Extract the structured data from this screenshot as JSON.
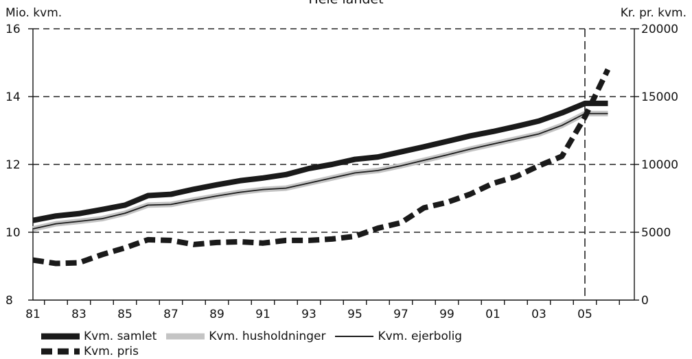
{
  "chart_data": {
    "type": "line",
    "title": "Hele landet",
    "left_axis_label": "Mio. kvm.",
    "right_axis_label": "Kr. pr. kvm.",
    "x": [
      "81",
      "82",
      "83",
      "84",
      "85",
      "86",
      "87",
      "88",
      "89",
      "90",
      "91",
      "92",
      "93",
      "94",
      "95",
      "96",
      "97",
      "98",
      "99",
      "00",
      "01",
      "02",
      "03",
      "04",
      "05",
      "06"
    ],
    "x_tick_labels": [
      "81",
      "83",
      "85",
      "87",
      "89",
      "91",
      "93",
      "95",
      "97",
      "99",
      "01",
      "03",
      "05"
    ],
    "y_left": {
      "range": [
        8,
        16
      ],
      "ticks": [
        "8",
        "10",
        "12",
        "14",
        "16"
      ]
    },
    "y_right": {
      "range": [
        0,
        20000
      ],
      "ticks": [
        "0",
        "5000",
        "10000",
        "15000",
        "20000"
      ]
    },
    "grid": "horizontal dashed at left ticks 10, 12, 14, 16",
    "marker_line_at": "05",
    "series": [
      {
        "name": "Kvm. samlet",
        "axis": "left",
        "style": "thick-black",
        "values": [
          10.35,
          10.48,
          10.55,
          10.67,
          10.8,
          11.08,
          11.12,
          11.27,
          11.4,
          11.52,
          11.6,
          11.7,
          11.88,
          12.0,
          12.15,
          12.22,
          12.37,
          12.52,
          12.68,
          12.84,
          12.97,
          13.12,
          13.28,
          13.52,
          13.8,
          13.8
        ]
      },
      {
        "name": "Kvm. husholdninger",
        "axis": "left",
        "style": "thick-gray",
        "values": [
          10.1,
          10.25,
          10.32,
          10.4,
          10.56,
          10.8,
          10.82,
          10.95,
          11.07,
          11.18,
          11.26,
          11.3,
          11.45,
          11.6,
          11.75,
          11.82,
          11.96,
          12.12,
          12.28,
          12.45,
          12.6,
          12.75,
          12.9,
          13.15,
          13.5,
          13.5
        ]
      },
      {
        "name": "Kvm. ejerbolig",
        "axis": "left",
        "style": "thin-black",
        "values": [
          10.1,
          10.25,
          10.32,
          10.4,
          10.56,
          10.8,
          10.82,
          10.95,
          11.07,
          11.18,
          11.26,
          11.3,
          11.45,
          11.6,
          11.75,
          11.82,
          11.96,
          12.12,
          12.28,
          12.45,
          12.6,
          12.75,
          12.9,
          13.15,
          13.5,
          13.5
        ]
      },
      {
        "name": "Kvm. pris",
        "axis": "right",
        "style": "thick-dashed",
        "values": [
          2950,
          2700,
          2750,
          3350,
          3850,
          4450,
          4400,
          4100,
          4250,
          4300,
          4200,
          4400,
          4400,
          4500,
          4700,
          5300,
          5700,
          6800,
          7200,
          7800,
          8600,
          9100,
          9900,
          10600,
          13500,
          17000
        ]
      }
    ]
  }
}
